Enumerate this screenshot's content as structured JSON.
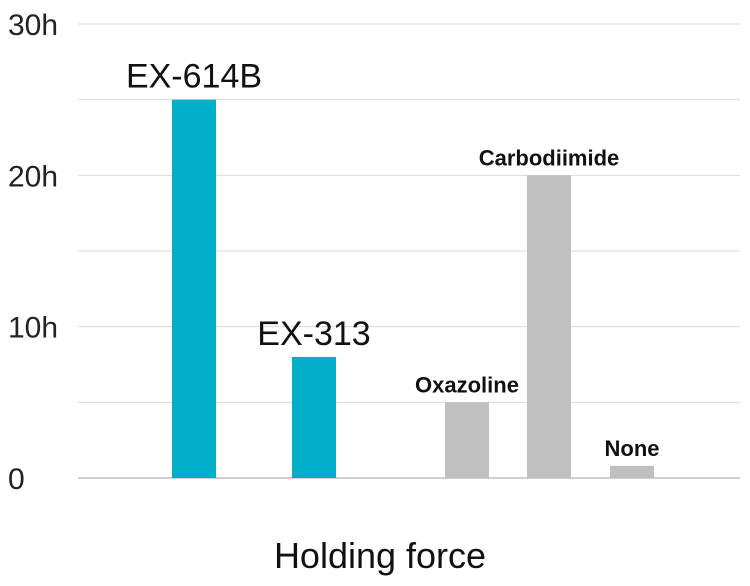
{
  "chart_data": {
    "type": "bar",
    "categories": [
      "EX-614B",
      "EX-313",
      "Oxazoline",
      "Carbodiimide",
      "None"
    ],
    "values": [
      25,
      8,
      5,
      20,
      0.8
    ],
    "colors": [
      "#00b0c8",
      "#00b0c8",
      "#c0c0c0",
      "#c0c0c0",
      "#c0c0c0"
    ],
    "ylim": [
      0,
      30
    ],
    "yticks": [
      0,
      10,
      20,
      30
    ],
    "ytick_labels": [
      "0",
      "10h",
      "20h",
      "30h"
    ],
    "xlabel": "Holding force",
    "ylabel": "",
    "title": "",
    "grid": true,
    "legend": "none"
  }
}
